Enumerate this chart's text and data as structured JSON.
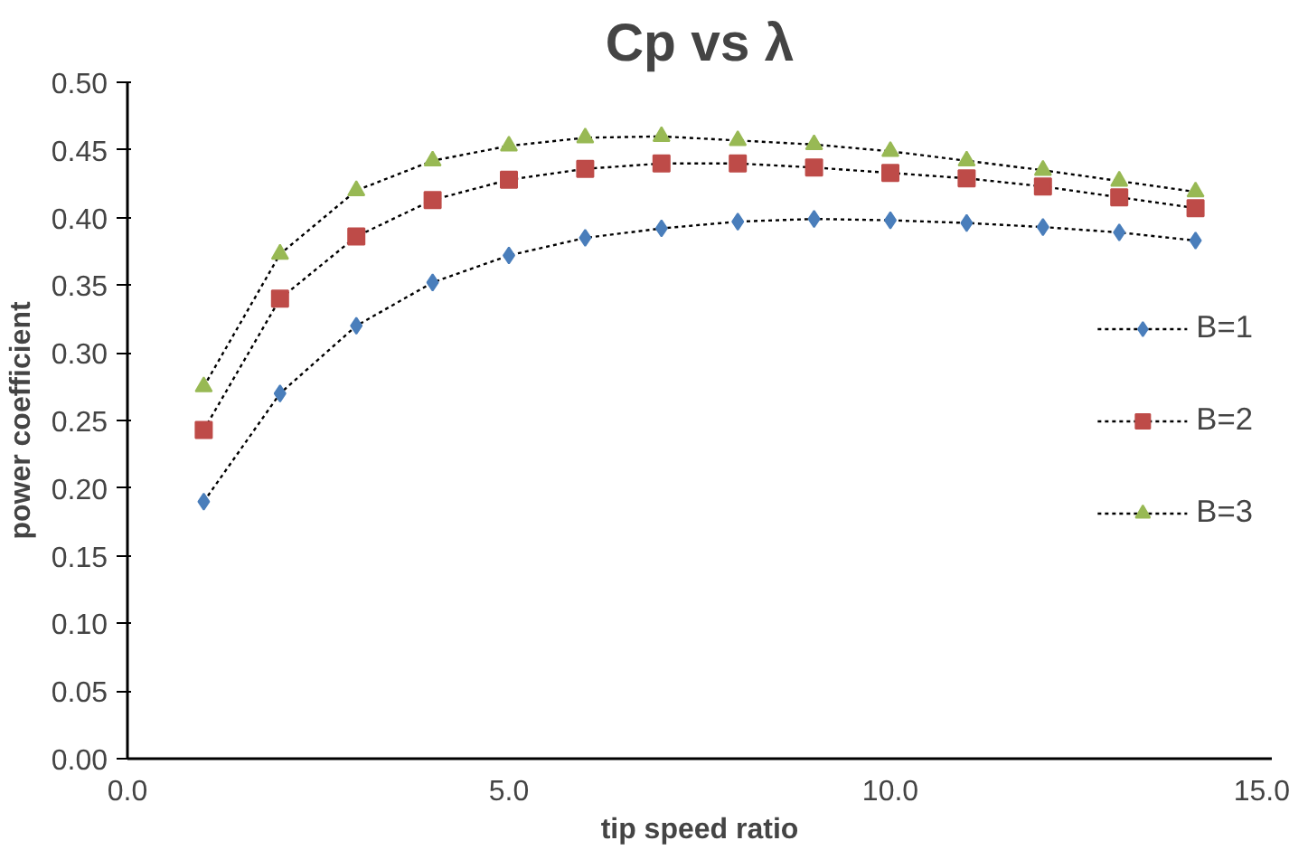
{
  "chart_data": {
    "type": "line",
    "title": "Cp vs λ",
    "xlabel": "tip speed ratio",
    "ylabel": "power coefficient",
    "x": [
      1,
      2,
      3,
      4,
      5,
      6,
      7,
      8,
      9,
      10,
      11,
      12,
      13,
      14
    ],
    "series": [
      {
        "name": "B=1",
        "color": "#4a7ebb",
        "marker": "diamond",
        "values": [
          0.19,
          0.27,
          0.32,
          0.352,
          0.372,
          0.385,
          0.392,
          0.397,
          0.399,
          0.398,
          0.396,
          0.393,
          0.389,
          0.383
        ]
      },
      {
        "name": "B=2",
        "color": "#be4b48",
        "marker": "square",
        "values": [
          0.243,
          0.34,
          0.386,
          0.413,
          0.428,
          0.436,
          0.44,
          0.44,
          0.437,
          0.433,
          0.429,
          0.423,
          0.415,
          0.407
        ]
      },
      {
        "name": "B=3",
        "color": "#98b954",
        "marker": "triangle",
        "values": [
          0.275,
          0.373,
          0.42,
          0.442,
          0.453,
          0.459,
          0.46,
          0.457,
          0.454,
          0.449,
          0.442,
          0.435,
          0.427,
          0.419
        ]
      }
    ],
    "xlim": [
      0,
      15
    ],
    "xticks": [
      {
        "value": 0,
        "label": "0.0"
      },
      {
        "value": 5,
        "label": "5.0"
      },
      {
        "value": 10,
        "label": "10.0"
      },
      {
        "value": 15,
        "label": "15.0"
      }
    ],
    "ylim": [
      0,
      0.5
    ],
    "yticks": [
      {
        "value": 0,
        "label": "0.00"
      },
      {
        "value": 0.05,
        "label": "0.05"
      },
      {
        "value": 0.1,
        "label": "0.10"
      },
      {
        "value": 0.15,
        "label": "0.15"
      },
      {
        "value": 0.2,
        "label": "0.20"
      },
      {
        "value": 0.25,
        "label": "0.25"
      },
      {
        "value": 0.3,
        "label": "0.30"
      },
      {
        "value": 0.35,
        "label": "0.35"
      },
      {
        "value": 0.4,
        "label": "0.40"
      },
      {
        "value": 0.45,
        "label": "0.45"
      },
      {
        "value": 0.5,
        "label": "0.50"
      }
    ],
    "grid": false,
    "legend": "right",
    "line_style": "dotted"
  }
}
